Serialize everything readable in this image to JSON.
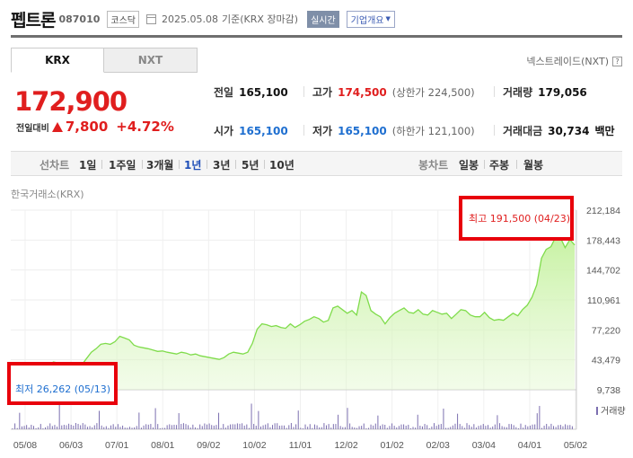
{
  "header": {
    "name": "펩트론",
    "code": "087010",
    "market": "코스닥",
    "date": "2025.05.08",
    "basis": "기준(KRX 장마감)",
    "live": "실시간",
    "company_info": "기업개요"
  },
  "tabs": [
    {
      "label": "KRX"
    },
    {
      "label": "NXT"
    }
  ],
  "nxt_link": "넥스트레이드(NXT)",
  "price": {
    "current": "172,900",
    "change_label": "전일대비",
    "change": "7,800",
    "change_pct": "+4.72%"
  },
  "info": {
    "prev": {
      "label": "전일",
      "value": "165,100"
    },
    "high": {
      "label": "고가",
      "value": "174,500",
      "sub": "(상한가 224,500)"
    },
    "volume": {
      "label": "거래량",
      "value": "179,056"
    },
    "open": {
      "label": "시가",
      "value": "165,100"
    },
    "low": {
      "label": "저가",
      "value": "165,100",
      "sub": "(하한가 121,100)"
    },
    "amount": {
      "label": "거래대금",
      "value": "30,734",
      "unit": "백만"
    }
  },
  "periods": {
    "line_label": "선차트",
    "line": [
      "1일",
      "1주일",
      "3개월",
      "1년",
      "3년",
      "5년",
      "10년"
    ],
    "selected": "1년",
    "candle_label": "봉차트",
    "candle": [
      "일봉",
      "주봉",
      "월봉"
    ]
  },
  "exchange_label": "한국거래소(KRX)",
  "chart_data": {
    "type": "area",
    "ylim": [
      9738,
      212184
    ],
    "y_ticks": [
      "212,184",
      "178,443",
      "144,702",
      "110,961",
      "77,220",
      "43,479",
      "9,738"
    ],
    "x_ticks": [
      "05/08",
      "06/03",
      "07/01",
      "08/01",
      "09/02",
      "10/02",
      "11/01",
      "12/02",
      "01/02",
      "02/03",
      "03/04",
      "04/01",
      "05/02"
    ],
    "high_label": "최고 191,500 (04/23)",
    "low_label": "최저 26,262 (05/13)",
    "volume_label": "거래량",
    "colors": {
      "line": "#7fdc4b",
      "fill": "#dff7c9",
      "high": "#e01e1e",
      "low": "#1f6fd0",
      "volume": "#7c6fb0"
    },
    "values": [
      29000,
      27000,
      26262,
      30000,
      28500,
      32000,
      34000,
      36000,
      38000,
      41000,
      40000,
      39000,
      38500,
      37000,
      36000,
      38000,
      45000,
      52000,
      56000,
      61000,
      62000,
      61000,
      64000,
      70000,
      68000,
      66000,
      60000,
      58000,
      57000,
      56000,
      54500,
      53000,
      53500,
      52000,
      51000,
      50000,
      52000,
      51000,
      49000,
      50000,
      48000,
      47000,
      46000,
      45000,
      44000,
      46000,
      50000,
      52000,
      51000,
      50000,
      52000,
      62000,
      78000,
      84000,
      83000,
      81000,
      82000,
      80000,
      79000,
      84000,
      80000,
      83000,
      87000,
      89000,
      92000,
      90000,
      86000,
      88000,
      102000,
      104000,
      100000,
      96000,
      99000,
      94000,
      120000,
      116000,
      99000,
      95000,
      92000,
      84000,
      91000,
      96000,
      99000,
      102000,
      97000,
      96000,
      100000,
      95000,
      94000,
      99000,
      97000,
      95000,
      96000,
      90000,
      95000,
      100000,
      99000,
      94000,
      92000,
      92000,
      97000,
      91000,
      88000,
      89000,
      88000,
      92000,
      96000,
      93000,
      100000,
      105000,
      114000,
      128000,
      158000,
      168000,
      171000,
      182000,
      181000,
      170000,
      179000,
      172900
    ]
  }
}
